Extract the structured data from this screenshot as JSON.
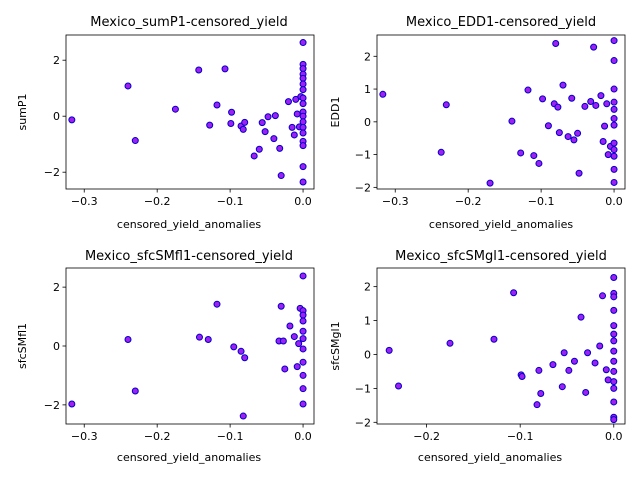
{
  "figure": {
    "background": "#ffffff"
  },
  "style": {
    "marker_face": "#a020f0",
    "marker_edge": "#0000cc"
  },
  "chart_data": [
    {
      "type": "scatter",
      "title": "Mexico_sumP1-censored_yield",
      "xlabel": "censored_yield_anomalies",
      "ylabel": "sumP1",
      "xlim": [
        -0.325,
        0.015
      ],
      "ylim": [
        -2.6,
        2.9
      ],
      "xticks": [
        -0.3,
        -0.2,
        -0.1,
        0.0
      ],
      "xtick_labels": [
        "−0.3",
        "−0.2",
        "−0.1",
        "0.0"
      ],
      "yticks": [
        -2,
        0,
        2
      ],
      "ytick_labels": [
        "−2",
        "0",
        "2"
      ],
      "grid": false,
      "points": [
        {
          "x": -0.317,
          "y": -0.13
        },
        {
          "x": -0.24,
          "y": 1.08
        },
        {
          "x": -0.23,
          "y": -0.87
        },
        {
          "x": -0.175,
          "y": 0.25
        },
        {
          "x": -0.143,
          "y": 1.65
        },
        {
          "x": -0.128,
          "y": -0.32
        },
        {
          "x": -0.118,
          "y": 0.4
        },
        {
          "x": -0.107,
          "y": 1.69
        },
        {
          "x": -0.099,
          "y": -0.26
        },
        {
          "x": -0.098,
          "y": 0.14
        },
        {
          "x": -0.085,
          "y": -0.35
        },
        {
          "x": -0.082,
          "y": -0.47
        },
        {
          "x": -0.08,
          "y": -0.22
        },
        {
          "x": -0.067,
          "y": -1.42
        },
        {
          "x": -0.06,
          "y": -1.18
        },
        {
          "x": -0.056,
          "y": -0.23
        },
        {
          "x": -0.052,
          "y": -0.55
        },
        {
          "x": -0.048,
          "y": -0.02
        },
        {
          "x": -0.04,
          "y": -0.8
        },
        {
          "x": -0.038,
          "y": 0.02
        },
        {
          "x": -0.032,
          "y": -1.15
        },
        {
          "x": -0.03,
          "y": -2.12
        },
        {
          "x": -0.02,
          "y": 0.52
        },
        {
          "x": -0.015,
          "y": -0.4
        },
        {
          "x": -0.012,
          "y": -0.67
        },
        {
          "x": -0.01,
          "y": 0.6
        },
        {
          "x": -0.008,
          "y": 0.08
        },
        {
          "x": -0.005,
          "y": -0.38
        },
        {
          "x": -0.003,
          "y": 0.7
        },
        {
          "x": 0.0,
          "y": 2.63
        },
        {
          "x": 0.0,
          "y": 1.85
        },
        {
          "x": 0.0,
          "y": 1.7
        },
        {
          "x": 0.0,
          "y": 1.5
        },
        {
          "x": 0.0,
          "y": 1.35
        },
        {
          "x": 0.0,
          "y": 1.15
        },
        {
          "x": 0.0,
          "y": 0.95
        },
        {
          "x": 0.0,
          "y": 0.65
        },
        {
          "x": 0.0,
          "y": 0.45
        },
        {
          "x": 0.0,
          "y": 0.15
        },
        {
          "x": 0.0,
          "y": 0.0
        },
        {
          "x": 0.0,
          "y": -0.2
        },
        {
          "x": 0.0,
          "y": -0.4
        },
        {
          "x": 0.0,
          "y": -0.6
        },
        {
          "x": 0.0,
          "y": -0.9
        },
        {
          "x": 0.0,
          "y": -1.05
        },
        {
          "x": 0.0,
          "y": -1.8
        },
        {
          "x": 0.0,
          "y": -2.35
        }
      ]
    },
    {
      "type": "scatter",
      "title": "Mexico_EDD1-censored_yield",
      "xlabel": "censored_yield_anomalies",
      "ylabel": "EDD1",
      "xlim": [
        -0.325,
        0.015
      ],
      "ylim": [
        -2.05,
        2.65
      ],
      "xticks": [
        -0.3,
        -0.2,
        -0.1,
        0.0
      ],
      "xtick_labels": [
        "−0.3",
        "−0.2",
        "−0.1",
        "0.0"
      ],
      "yticks": [
        -2,
        -1,
        0,
        1,
        2
      ],
      "ytick_labels": [
        "−2",
        "−1",
        "0",
        "1",
        "2"
      ],
      "grid": false,
      "points": [
        {
          "x": -0.317,
          "y": 0.84
        },
        {
          "x": -0.23,
          "y": 0.52
        },
        {
          "x": -0.237,
          "y": -0.93
        },
        {
          "x": -0.17,
          "y": -1.87
        },
        {
          "x": -0.14,
          "y": 0.02
        },
        {
          "x": -0.128,
          "y": -0.95
        },
        {
          "x": -0.118,
          "y": 0.97
        },
        {
          "x": -0.11,
          "y": -1.03
        },
        {
          "x": -0.103,
          "y": -1.27
        },
        {
          "x": -0.098,
          "y": 0.7
        },
        {
          "x": -0.09,
          "y": -0.12
        },
        {
          "x": -0.082,
          "y": 0.55
        },
        {
          "x": -0.08,
          "y": 2.39
        },
        {
          "x": -0.077,
          "y": 0.45
        },
        {
          "x": -0.075,
          "y": -0.33
        },
        {
          "x": -0.07,
          "y": 1.12
        },
        {
          "x": -0.063,
          "y": -0.45
        },
        {
          "x": -0.058,
          "y": 0.72
        },
        {
          "x": -0.055,
          "y": -0.55
        },
        {
          "x": -0.05,
          "y": -0.35
        },
        {
          "x": -0.048,
          "y": -1.57
        },
        {
          "x": -0.04,
          "y": 0.47
        },
        {
          "x": -0.032,
          "y": 0.62
        },
        {
          "x": -0.028,
          "y": 2.28
        },
        {
          "x": -0.025,
          "y": 0.5
        },
        {
          "x": -0.018,
          "y": 0.8
        },
        {
          "x": -0.015,
          "y": -0.6
        },
        {
          "x": -0.013,
          "y": -0.13
        },
        {
          "x": -0.01,
          "y": 0.55
        },
        {
          "x": -0.008,
          "y": -1.0
        },
        {
          "x": -0.005,
          "y": -0.75
        },
        {
          "x": 0.0,
          "y": 2.48
        },
        {
          "x": 0.0,
          "y": 1.87
        },
        {
          "x": 0.0,
          "y": 1.0
        },
        {
          "x": 0.0,
          "y": 0.6
        },
        {
          "x": 0.0,
          "y": 0.38
        },
        {
          "x": 0.0,
          "y": 0.1
        },
        {
          "x": 0.0,
          "y": -0.1
        },
        {
          "x": 0.0,
          "y": -0.65
        },
        {
          "x": 0.0,
          "y": -0.85
        },
        {
          "x": 0.0,
          "y": -1.05
        },
        {
          "x": 0.0,
          "y": -1.45
        },
        {
          "x": 0.0,
          "y": -1.85
        }
      ]
    },
    {
      "type": "scatter",
      "title": "Mexico_sfcSMfl1-censored_yield",
      "xlabel": "censored_yield_anomalies",
      "ylabel": "sfcSMfl1",
      "xlim": [
        -0.325,
        0.015
      ],
      "ylim": [
        -2.65,
        2.65
      ],
      "xticks": [
        -0.3,
        -0.2,
        -0.1,
        0.0
      ],
      "xtick_labels": [
        "−0.3",
        "−0.2",
        "−0.1",
        "0.0"
      ],
      "yticks": [
        -2,
        0,
        2
      ],
      "ytick_labels": [
        "−2",
        "0",
        "2"
      ],
      "grid": false,
      "points": [
        {
          "x": -0.317,
          "y": -1.97
        },
        {
          "x": -0.24,
          "y": 0.22
        },
        {
          "x": -0.23,
          "y": -1.53
        },
        {
          "x": -0.142,
          "y": 0.3
        },
        {
          "x": -0.13,
          "y": 0.22
        },
        {
          "x": -0.118,
          "y": 1.42
        },
        {
          "x": -0.095,
          "y": -0.03
        },
        {
          "x": -0.085,
          "y": -0.18
        },
        {
          "x": -0.082,
          "y": -2.38
        },
        {
          "x": -0.08,
          "y": -0.4
        },
        {
          "x": -0.03,
          "y": 1.35
        },
        {
          "x": -0.033,
          "y": 0.17
        },
        {
          "x": -0.025,
          "y": -0.78
        },
        {
          "x": -0.027,
          "y": 0.17
        },
        {
          "x": -0.018,
          "y": 0.68
        },
        {
          "x": -0.012,
          "y": 0.32
        },
        {
          "x": -0.008,
          "y": -0.7
        },
        {
          "x": -0.006,
          "y": 0.08
        },
        {
          "x": -0.004,
          "y": 1.28
        },
        {
          "x": 0.0,
          "y": 2.38
        },
        {
          "x": 0.0,
          "y": 1.2
        },
        {
          "x": 0.0,
          "y": 1.05
        },
        {
          "x": 0.0,
          "y": 0.85
        },
        {
          "x": 0.0,
          "y": 0.5
        },
        {
          "x": 0.0,
          "y": 0.25
        },
        {
          "x": 0.0,
          "y": -0.1
        },
        {
          "x": 0.0,
          "y": -0.55
        },
        {
          "x": 0.0,
          "y": -1.0
        },
        {
          "x": 0.0,
          "y": -1.45
        },
        {
          "x": 0.0,
          "y": -1.97
        }
      ]
    },
    {
      "type": "scatter",
      "title": "Mexico_sfcSMgl1-censored_yield",
      "xlabel": "censored_yield_anomalies",
      "ylabel": "sfcSMgl1",
      "xlim": [
        -0.253,
        0.012
      ],
      "ylim": [
        -2.05,
        2.55
      ],
      "xticks": [
        -0.2,
        -0.1,
        0.0
      ],
      "xtick_labels": [
        "−0.2",
        "−0.1",
        "0.0"
      ],
      "yticks": [
        -2,
        -1,
        0,
        1,
        2
      ],
      "ytick_labels": [
        "−2",
        "−1",
        "0",
        "1",
        "2"
      ],
      "grid": false,
      "points": [
        {
          "x": -0.24,
          "y": 0.12
        },
        {
          "x": -0.23,
          "y": -0.93
        },
        {
          "x": -0.175,
          "y": 0.33
        },
        {
          "x": -0.128,
          "y": 0.45
        },
        {
          "x": -0.107,
          "y": 1.82
        },
        {
          "x": -0.099,
          "y": -0.6
        },
        {
          "x": -0.098,
          "y": -0.65
        },
        {
          "x": -0.082,
          "y": -1.48
        },
        {
          "x": -0.08,
          "y": -0.47
        },
        {
          "x": -0.078,
          "y": -1.15
        },
        {
          "x": -0.065,
          "y": -0.3
        },
        {
          "x": -0.055,
          "y": -0.95
        },
        {
          "x": -0.053,
          "y": 0.05
        },
        {
          "x": -0.048,
          "y": -0.47
        },
        {
          "x": -0.042,
          "y": -0.2
        },
        {
          "x": -0.035,
          "y": 1.1
        },
        {
          "x": -0.03,
          "y": -1.12
        },
        {
          "x": -0.028,
          "y": 0.05
        },
        {
          "x": -0.02,
          "y": -0.25
        },
        {
          "x": -0.015,
          "y": 0.25
        },
        {
          "x": -0.012,
          "y": 1.73
        },
        {
          "x": -0.008,
          "y": -0.45
        },
        {
          "x": -0.006,
          "y": -0.75
        },
        {
          "x": 0.0,
          "y": 2.27
        },
        {
          "x": 0.0,
          "y": 1.8
        },
        {
          "x": 0.0,
          "y": 1.7
        },
        {
          "x": 0.0,
          "y": 1.3
        },
        {
          "x": 0.0,
          "y": 0.85
        },
        {
          "x": 0.0,
          "y": 0.6
        },
        {
          "x": 0.0,
          "y": 0.4
        },
        {
          "x": 0.0,
          "y": 0.1
        },
        {
          "x": 0.0,
          "y": -0.2
        },
        {
          "x": 0.0,
          "y": -0.5
        },
        {
          "x": 0.0,
          "y": -0.8
        },
        {
          "x": 0.0,
          "y": -1.0
        },
        {
          "x": 0.0,
          "y": -1.4
        },
        {
          "x": 0.0,
          "y": -1.85
        },
        {
          "x": 0.0,
          "y": -1.92
        }
      ]
    }
  ]
}
